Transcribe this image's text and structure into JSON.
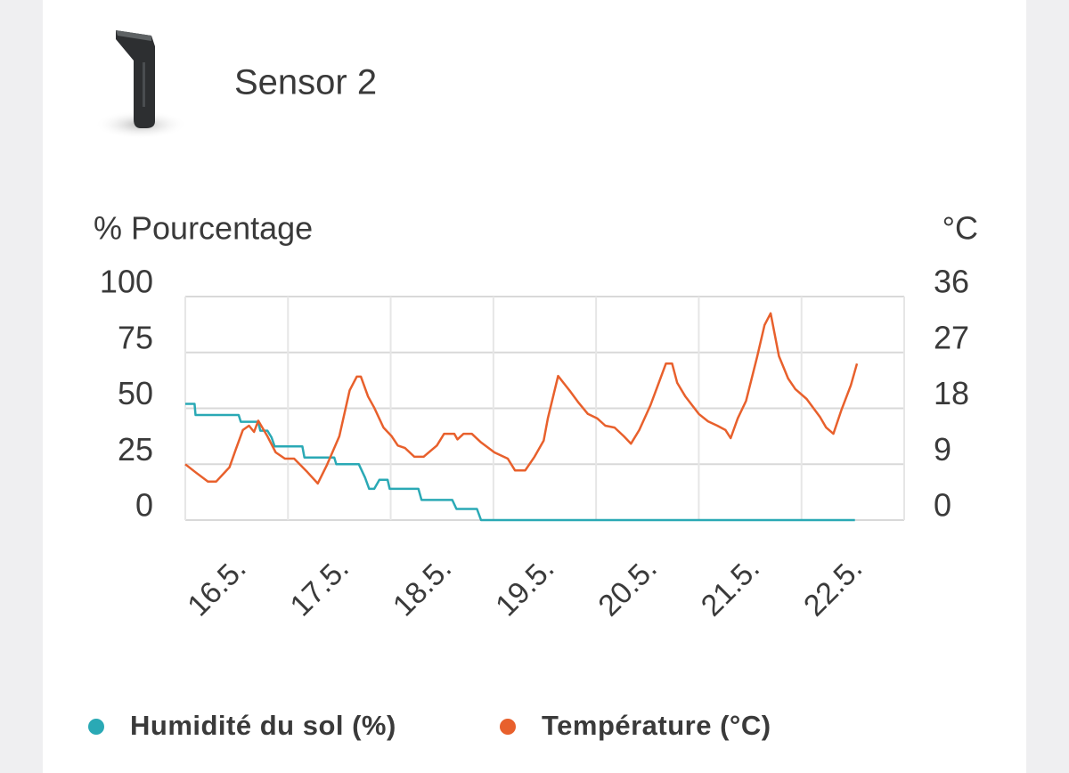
{
  "header": {
    "title": "Sensor 2"
  },
  "chart_data": {
    "type": "line",
    "ylabel": "% Pourcentage",
    "y2label": "°C",
    "xlim": [
      15.5,
      22.5
    ],
    "xticks": [
      {
        "value": 16,
        "label": "16.5."
      },
      {
        "value": 17,
        "label": "17.5."
      },
      {
        "value": 18,
        "label": "18.5."
      },
      {
        "value": 19,
        "label": "19.5."
      },
      {
        "value": 20,
        "label": "20.5."
      },
      {
        "value": 21,
        "label": "21.5."
      },
      {
        "value": 22,
        "label": "22.5."
      }
    ],
    "ylim": [
      0,
      100
    ],
    "yticks": [
      0,
      25,
      50,
      75,
      100
    ],
    "y2lim": [
      0,
      36
    ],
    "y2ticks": [
      0,
      9,
      18,
      27,
      36
    ],
    "grid": true,
    "series": [
      {
        "name": "Humidité du sol (%)",
        "color": "#2aa9b5",
        "x": [
          15.5,
          15.59,
          15.6,
          16.02,
          16.04,
          16.21,
          16.23,
          16.3,
          16.34,
          16.37,
          16.64,
          16.66,
          16.95,
          16.97,
          17.19,
          17.25,
          17.29,
          17.34,
          17.39,
          17.47,
          17.49,
          17.77,
          17.8,
          18.1,
          18.14,
          18.34,
          18.38,
          22.02
        ],
        "values": [
          52,
          52,
          47,
          47,
          44,
          44,
          40,
          40,
          37,
          33,
          33,
          28,
          28,
          25,
          25,
          19,
          14,
          14,
          18,
          18,
          14,
          14,
          9,
          9,
          5,
          5,
          0,
          0
        ]
      },
      {
        "name": "Température (°C)",
        "color": "#e8602c",
        "axis": "y2",
        "x": [
          15.5,
          15.6,
          15.72,
          15.8,
          15.93,
          15.99,
          16.06,
          16.12,
          16.17,
          16.21,
          16.3,
          16.38,
          16.47,
          16.56,
          16.69,
          16.79,
          16.88,
          17.0,
          17.1,
          17.17,
          17.21,
          17.28,
          17.34,
          17.43,
          17.51,
          17.57,
          17.64,
          17.73,
          17.82,
          17.95,
          18.02,
          18.12,
          18.15,
          18.21,
          18.29,
          18.38,
          18.51,
          18.64,
          18.71,
          18.81,
          18.9,
          18.99,
          19.03,
          19.13,
          19.25,
          19.33,
          19.42,
          19.51,
          19.59,
          19.68,
          19.77,
          19.84,
          19.92,
          20.03,
          20.11,
          20.18,
          20.24,
          20.29,
          20.37,
          20.5,
          20.59,
          20.68,
          20.76,
          20.81,
          20.88,
          20.96,
          21.07,
          21.14,
          21.2,
          21.28,
          21.37,
          21.44,
          21.55,
          21.68,
          21.74,
          21.81,
          21.89,
          21.98,
          22.04
        ],
        "values": [
          9,
          7.7,
          6.2,
          6.2,
          8.5,
          11.3,
          14.5,
          15.2,
          14.2,
          16,
          13.5,
          10.9,
          9.9,
          9.9,
          7.7,
          5.9,
          8.9,
          13.5,
          20.9,
          23.1,
          23.1,
          19.9,
          18.1,
          14.9,
          13.5,
          12,
          11.6,
          10.2,
          10.2,
          12,
          13.9,
          13.9,
          13,
          13.9,
          13.9,
          12.5,
          10.9,
          9.9,
          8,
          8,
          10.2,
          12.8,
          16.4,
          23.2,
          20.7,
          18.9,
          17.1,
          16.4,
          15.2,
          14.9,
          13.5,
          12.3,
          14.5,
          18.5,
          22.1,
          25.2,
          25.2,
          22.1,
          19.9,
          17.1,
          15.9,
          15.2,
          14.5,
          13.2,
          16.4,
          19.2,
          26.4,
          31.4,
          33.3,
          26.4,
          22.8,
          21.1,
          19.5,
          16.6,
          14.9,
          13.9,
          17.8,
          21.7,
          25.2
        ]
      }
    ]
  }
}
